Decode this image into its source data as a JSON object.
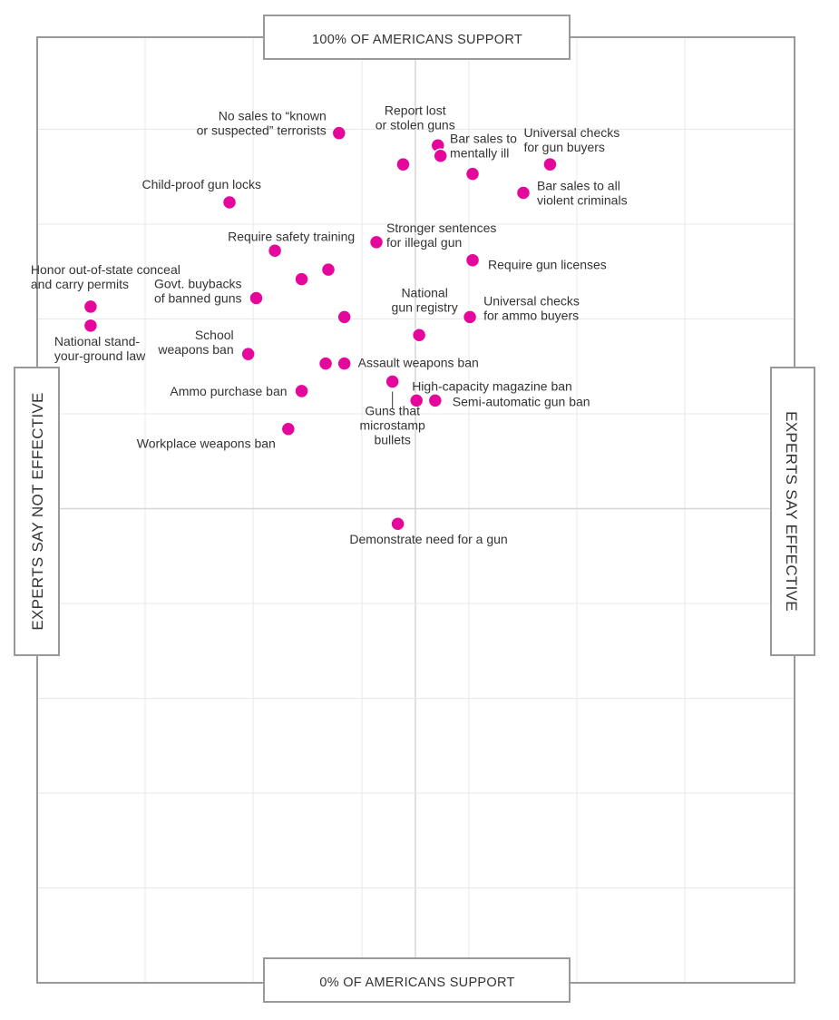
{
  "chart_data": {
    "type": "scatter",
    "x_axis": {
      "left_label": "EXPERTS SAY NOT EFFECTIVE",
      "right_label": "EXPERTS SAY EFFECTIVE"
    },
    "y_axis": {
      "top_label": "100% OF AMERICANS SUPPORT",
      "bottom_label": "0% OF AMERICANS SUPPORT",
      "range": [
        0,
        100
      ]
    },
    "grid": true,
    "points": [
      {
        "label": "No sales to “known or suspected” terrorists",
        "lines": [
          "No sales to “known",
          "or suspected” terrorists"
        ],
        "x": 5.65,
        "y": 89.6,
        "anchor": "end",
        "dx": -14,
        "dy": -11
      },
      {
        "label": "Report lost or stolen guns",
        "lines": [
          "Report lost",
          "or stolen guns"
        ],
        "x": 7.5,
        "y": 88.3,
        "anchor": "middle",
        "dx": -25,
        "dy": -31
      },
      {
        "label": "",
        "x": 6.85,
        "y": 86.3
      },
      {
        "label": "",
        "x": 7.55,
        "y": 87.2
      },
      {
        "label": "Bar sales to mentally ill",
        "lines": [
          "Bar sales to",
          "mentally ill"
        ],
        "x": 8.15,
        "y": 85.3,
        "anchor": "start",
        "dx": -25,
        "dy": -31
      },
      {
        "label": "Universal checks for gun buyers",
        "lines": [
          "Universal checks",
          "for gun buyers"
        ],
        "x": 9.6,
        "y": 86.3,
        "anchor": "start",
        "dx": -29,
        "dy": -27
      },
      {
        "label": "Bar sales to all violent criminals",
        "lines": [
          "Bar sales to all",
          "violent criminals"
        ],
        "x": 9.1,
        "y": 83.3,
        "anchor": "start",
        "dx": 15,
        "dy": 0
      },
      {
        "label": "Child-proof gun locks",
        "lines": [
          "Child-proof gun locks"
        ],
        "x": 3.6,
        "y": 82.3,
        "anchor": "end",
        "dx": 35,
        "dy": -20
      },
      {
        "label": "Require safety training",
        "lines": [
          "Require safety training"
        ],
        "x": 4.45,
        "y": 77.2,
        "anchor": "start",
        "dx": -52,
        "dy": -16
      },
      {
        "label": "Stronger sentences for illegal gun",
        "lines": [
          "Stronger sentences",
          "for illegal gun"
        ],
        "x": 6.35,
        "y": 78.1,
        "anchor": "start",
        "dx": 11,
        "dy": -8
      },
      {
        "label": "Require gun licenses",
        "lines": [
          "Require gun licenses"
        ],
        "x": 8.15,
        "y": 76.2,
        "anchor": "start",
        "dx": 17,
        "dy": 5
      },
      {
        "label": "",
        "x": 4.95,
        "y": 74.2
      },
      {
        "label": "",
        "x": 5.45,
        "y": 75.2
      },
      {
        "label": "Govt. buybacks of banned guns",
        "lines": [
          "Govt. buybacks",
          "of banned guns"
        ],
        "x": 4.1,
        "y": 72.2,
        "anchor": "end",
        "dx": -16,
        "dy": -8
      },
      {
        "label": "Honor out-of-state conceal and carry permits",
        "lines": [
          "Honor out-of-state conceal",
          "and carry permits"
        ],
        "x": 1.0,
        "y": 71.3,
        "anchor": "start",
        "dx": -66,
        "dy": -33
      },
      {
        "label": "National stand-your-ground law",
        "lines": [
          "National stand-",
          "your-ground law"
        ],
        "x": 1.0,
        "y": 69.3,
        "anchor": "start",
        "dx": -40,
        "dy": 25
      },
      {
        "label": "",
        "x": 5.75,
        "y": 70.2
      },
      {
        "label": "National gun registry",
        "lines": [
          "National",
          "gun registry"
        ],
        "x": 7.15,
        "y": 68.3,
        "anchor": "middle",
        "dx": 6,
        "dy": -39
      },
      {
        "label": "Universal checks for ammo buyers",
        "lines": [
          "Universal checks",
          "for ammo buyers"
        ],
        "x": 8.1,
        "y": 70.2,
        "anchor": "start",
        "dx": 15,
        "dy": -10
      },
      {
        "label": "School weapons ban",
        "lines": [
          "School",
          "weapons ban"
        ],
        "x": 3.95,
        "y": 66.3,
        "anchor": "end",
        "dx": -16,
        "dy": -13
      },
      {
        "label": "",
        "x": 5.4,
        "y": 65.3
      },
      {
        "label": "Assault weapons ban",
        "lines": [
          "Assault weapons ban"
        ],
        "x": 5.75,
        "y": 65.3,
        "anchor": "start",
        "dx": 15,
        "dy": -1
      },
      {
        "label": "Ammo purchase ban",
        "lines": [
          "Ammo purchase ban"
        ],
        "x": 4.95,
        "y": 62.4,
        "anchor": "end",
        "dx": -16,
        "dy": 0
      },
      {
        "label": "Guns that microstamp bullets",
        "lines": [
          "Guns that",
          "microstamp",
          "bullets"
        ],
        "x": 6.65,
        "y": 63.4,
        "anchor": "middle",
        "dx": 0,
        "dy": 48,
        "leader": true
      },
      {
        "label": "High-capacity magazine ban",
        "lines": [
          "High-capacity magazine ban"
        ],
        "x": 7.1,
        "y": 61.4,
        "anchor": "start",
        "dx": -5,
        "dy": -16
      },
      {
        "label": "Semi-automatic gun ban",
        "lines": [
          "Semi-automatic gun ban"
        ],
        "x": 7.45,
        "y": 61.4,
        "anchor": "start",
        "dx": 19,
        "dy": 1
      },
      {
        "label": "Workplace weapons ban",
        "lines": [
          "Workplace weapons ban"
        ],
        "x": 4.7,
        "y": 58.4,
        "anchor": "end",
        "dx": -14,
        "dy": 16
      },
      {
        "label": "Demonstrate need for a gun",
        "lines": [
          "Demonstrate need for a gun"
        ],
        "x": 6.75,
        "y": 48.4,
        "anchor": "middle",
        "dx": 34,
        "dy": 17
      }
    ]
  }
}
